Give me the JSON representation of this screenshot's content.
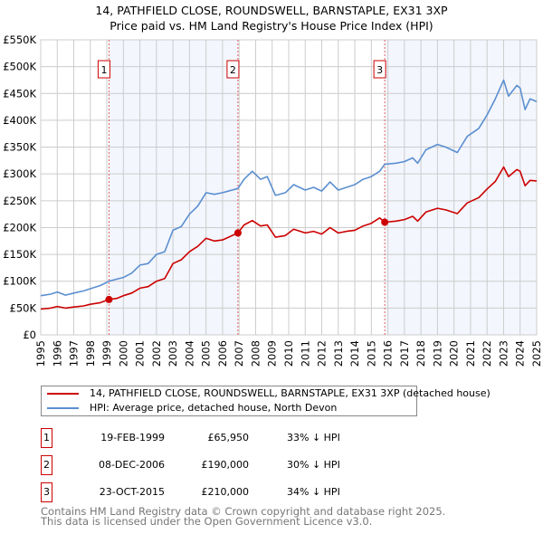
{
  "chart_data": {
    "type": "line",
    "title": "14, PATHFIELD CLOSE, ROUNDSWELL, BARNSTAPLE, EX31 3XP",
    "subtitle": "Price paid vs. HM Land Registry's House Price Index (HPI)",
    "xlim": [
      1995,
      2025
    ],
    "ylim": [
      0,
      550000
    ],
    "grid": true,
    "x_ticks": [
      "1995",
      "1996",
      "1997",
      "1998",
      "1999",
      "2000",
      "2001",
      "2002",
      "2003",
      "2004",
      "2005",
      "2006",
      "2007",
      "2008",
      "2009",
      "2010",
      "2011",
      "2012",
      "2013",
      "2014",
      "2015",
      "2016",
      "2017",
      "2018",
      "2019",
      "2020",
      "2021",
      "2022",
      "2023",
      "2024",
      "2025"
    ],
    "y_ticks": [
      {
        "v": 0,
        "label": "£0"
      },
      {
        "v": 50000,
        "label": "£50K"
      },
      {
        "v": 100000,
        "label": "£100K"
      },
      {
        "v": 150000,
        "label": "£150K"
      },
      {
        "v": 200000,
        "label": "£200K"
      },
      {
        "v": 250000,
        "label": "£250K"
      },
      {
        "v": 300000,
        "label": "£300K"
      },
      {
        "v": 350000,
        "label": "£350K"
      },
      {
        "v": 400000,
        "label": "£400K"
      },
      {
        "v": 450000,
        "label": "£450K"
      },
      {
        "v": 500000,
        "label": "£500K"
      },
      {
        "v": 550000,
        "label": "£550K"
      }
    ],
    "shaded_ranges": [
      [
        1999.13,
        2006.93
      ],
      [
        2015.81,
        2025
      ]
    ],
    "series": [
      {
        "name": "14, PATHFIELD CLOSE, ROUNDSWELL, BARNSTAPLE, EX31 3XP (detached house)",
        "color": "#cc0000",
        "x": [
          1995,
          1995.6,
          1996,
          1996.5,
          1997,
          1997.6,
          1998,
          1998.6,
          1999.13,
          1999.6,
          2000,
          2000.5,
          2001,
          2001.5,
          2002,
          2002.5,
          2003,
          2003.5,
          2004,
          2004.5,
          2005,
          2005.5,
          2006,
          2006.93,
          2007.3,
          2007.8,
          2008.3,
          2008.7,
          2009.2,
          2009.8,
          2010.3,
          2011,
          2011.5,
          2012,
          2012.5,
          2013,
          2013.5,
          2014,
          2014.5,
          2015,
          2015.5,
          2015.81,
          2016.5,
          2017,
          2017.5,
          2017.8,
          2018.3,
          2019,
          2019.5,
          2020.2,
          2020.8,
          2021.5,
          2022,
          2022.5,
          2023,
          2023.3,
          2023.8,
          2024,
          2024.3,
          2024.6,
          2025
        ],
        "y": [
          48000,
          50000,
          53000,
          50000,
          52000,
          54000,
          57000,
          60000,
          65950,
          68000,
          73000,
          78000,
          87000,
          90000,
          100000,
          105000,
          133000,
          140000,
          155000,
          165000,
          180000,
          175000,
          177000,
          190000,
          205000,
          213000,
          203000,
          205000,
          182000,
          185000,
          197000,
          190000,
          193000,
          188000,
          200000,
          190000,
          193000,
          195000,
          203000,
          208000,
          218000,
          210000,
          212000,
          215000,
          221000,
          212000,
          229000,
          236000,
          233000,
          226000,
          246000,
          256000,
          272000,
          286000,
          313000,
          295000,
          308000,
          305000,
          278000,
          288000,
          287000
        ]
      },
      {
        "name": "HPI: Average price, detached house, North Devon",
        "color": "#5b8fd0",
        "x": [
          1995,
          1995.6,
          1996,
          1996.5,
          1997,
          1997.6,
          1998,
          1998.6,
          1999.13,
          1999.6,
          2000,
          2000.5,
          2001,
          2001.5,
          2002,
          2002.5,
          2003,
          2003.5,
          2004,
          2004.5,
          2005,
          2005.5,
          2006,
          2006.93,
          2007.3,
          2007.8,
          2008.3,
          2008.7,
          2009.2,
          2009.8,
          2010.3,
          2011,
          2011.5,
          2012,
          2012.5,
          2013,
          2013.5,
          2014,
          2014.5,
          2015,
          2015.5,
          2015.81,
          2016.5,
          2017,
          2017.5,
          2017.8,
          2018.3,
          2019,
          2019.5,
          2020.2,
          2020.8,
          2021.5,
          2022,
          2022.5,
          2023,
          2023.3,
          2023.8,
          2024,
          2024.3,
          2024.6,
          2025
        ],
        "y": [
          73000,
          76000,
          80000,
          74000,
          78000,
          82000,
          86000,
          92000,
          100000,
          104000,
          107000,
          115000,
          130000,
          133000,
          150000,
          155000,
          195000,
          202000,
          225000,
          240000,
          265000,
          262000,
          265000,
          273000,
          290000,
          305000,
          290000,
          295000,
          260000,
          265000,
          280000,
          270000,
          275000,
          268000,
          285000,
          270000,
          275000,
          280000,
          290000,
          295000,
          305000,
          318000,
          320000,
          323000,
          330000,
          320000,
          345000,
          355000,
          350000,
          340000,
          370000,
          385000,
          410000,
          440000,
          475000,
          445000,
          465000,
          460000,
          420000,
          440000,
          435000
        ]
      }
    ],
    "sales": [
      {
        "num": "1",
        "x": 1999.13,
        "price": 65950,
        "date": "19-FEB-1999",
        "price_label": "£65,950",
        "hpi_diff": "33% ↓ HPI"
      },
      {
        "num": "2",
        "x": 2006.93,
        "price": 190000,
        "date": "08-DEC-2006",
        "price_label": "£190,000",
        "hpi_diff": "30% ↓ HPI"
      },
      {
        "num": "3",
        "x": 2015.81,
        "price": 210000,
        "date": "23-OCT-2015",
        "price_label": "£210,000",
        "hpi_diff": "34% ↓ HPI"
      }
    ],
    "legend_position": "below"
  },
  "footer": {
    "line1": "Contains HM Land Registry data © Crown copyright and database right 2025.",
    "line2": "This data is licensed under the Open Government Licence v3.0."
  }
}
